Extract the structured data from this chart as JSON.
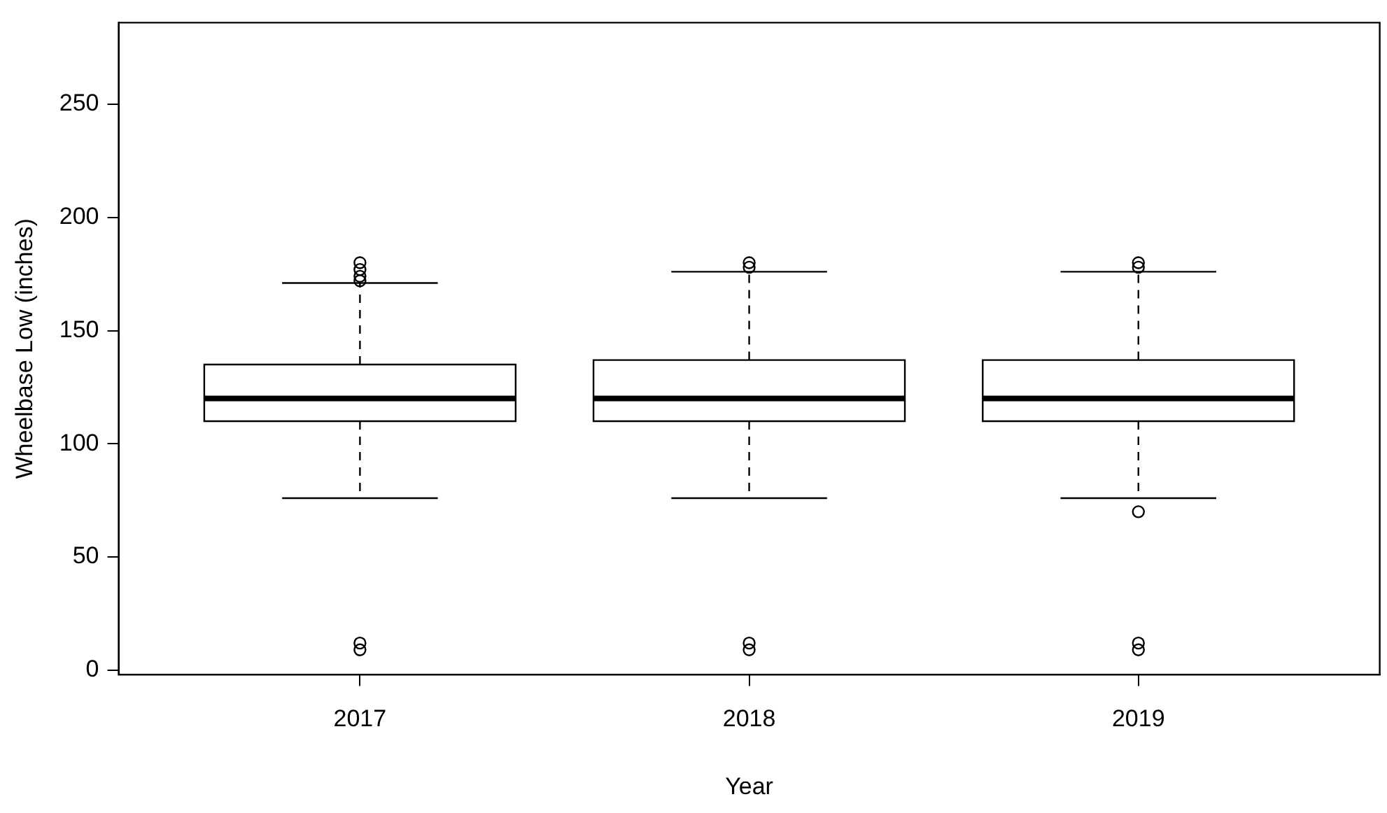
{
  "chart_data": {
    "type": "box",
    "xlabel": "Year",
    "ylabel": "Wheelbase Low (inches)",
    "categories": [
      "2017",
      "2018",
      "2019"
    ],
    "boxes": [
      {
        "low": 76,
        "q1": 110,
        "median": 120,
        "q3": 135,
        "high": 171,
        "outliers": [
          180,
          177,
          174,
          172,
          12,
          9
        ]
      },
      {
        "low": 76,
        "q1": 110,
        "median": 120,
        "q3": 137,
        "high": 176,
        "outliers": [
          180,
          178,
          12,
          9
        ]
      },
      {
        "low": 76,
        "q1": 110,
        "median": 120,
        "q3": 137,
        "high": 176,
        "outliers": [
          180,
          178,
          70,
          12,
          9
        ]
      }
    ],
    "ylim": [
      -2,
      286
    ],
    "yticks": [
      0,
      50,
      100,
      150,
      200,
      250
    ],
    "grid": false,
    "legend": false
  }
}
